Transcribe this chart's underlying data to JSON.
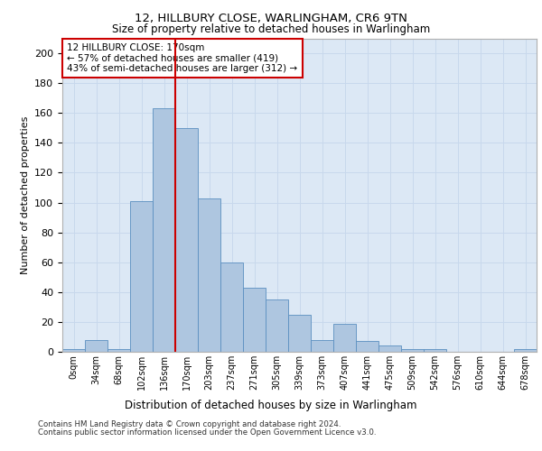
{
  "title1": "12, HILLBURY CLOSE, WARLINGHAM, CR6 9TN",
  "title2": "Size of property relative to detached houses in Warlingham",
  "xlabel": "Distribution of detached houses by size in Warlingham",
  "ylabel": "Number of detached properties",
  "bar_labels": [
    "0sqm",
    "34sqm",
    "68sqm",
    "102sqm",
    "136sqm",
    "170sqm",
    "203sqm",
    "237sqm",
    "271sqm",
    "305sqm",
    "339sqm",
    "373sqm",
    "407sqm",
    "441sqm",
    "475sqm",
    "509sqm",
    "542sqm",
    "576sqm",
    "610sqm",
    "644sqm",
    "678sqm"
  ],
  "bar_values": [
    2,
    8,
    2,
    101,
    163,
    150,
    103,
    60,
    43,
    35,
    25,
    8,
    19,
    7,
    4,
    2,
    2,
    0,
    0,
    0,
    2
  ],
  "bar_color": "#aec6e0",
  "bar_edge_color": "#5a8fc0",
  "vline_color": "#cc0000",
  "annotation_text": "12 HILLBURY CLOSE: 170sqm\n← 57% of detached houses are smaller (419)\n43% of semi-detached houses are larger (312) →",
  "annotation_box_color": "#ffffff",
  "annotation_box_edge_color": "#cc0000",
  "grid_color": "#c8d8ec",
  "plot_background": "#dce8f5",
  "ylim": [
    0,
    210
  ],
  "yticks": [
    0,
    20,
    40,
    60,
    80,
    100,
    120,
    140,
    160,
    180,
    200
  ],
  "footer1": "Contains HM Land Registry data © Crown copyright and database right 2024.",
  "footer2": "Contains public sector information licensed under the Open Government Licence v3.0."
}
